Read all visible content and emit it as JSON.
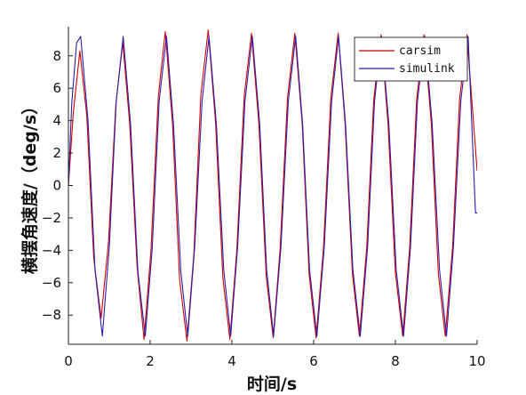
{
  "chart_data": {
    "type": "line",
    "title": "",
    "xlabel": "时间/s",
    "ylabel": "横摆角速度/（deg/s）",
    "xlim": [
      0,
      10
    ],
    "ylim": [
      -9.8,
      9.8
    ],
    "xticks": [
      0,
      2,
      4,
      6,
      8,
      10
    ],
    "yticks": [
      -8,
      -6,
      -4,
      -2,
      0,
      2,
      4,
      6,
      8
    ],
    "grid": false,
    "legend": "top-right",
    "series": [
      {
        "name": "carsim",
        "color": "#d40000",
        "x": [
          0,
          0.12,
          0.28,
          0.45,
          0.62,
          0.8,
          0.98,
          1.16,
          1.33,
          1.5,
          1.68,
          1.85,
          2.02,
          2.2,
          2.37,
          2.55,
          2.72,
          2.9,
          3.07,
          3.24,
          3.42,
          3.6,
          3.78,
          3.95,
          4.12,
          4.3,
          4.48,
          4.66,
          4.84,
          5.01,
          5.18,
          5.36,
          5.54,
          5.72,
          5.89,
          6.06,
          6.24,
          6.42,
          6.6,
          6.77,
          6.95,
          7.12,
          7.3,
          7.47,
          7.65,
          7.82,
          8.0,
          8.18,
          8.35,
          8.52,
          8.7,
          8.88,
          9.05,
          9.22,
          9.4,
          9.57,
          9.75,
          9.92,
          10.0
        ],
        "y": [
          0,
          4.5,
          8.3,
          4.3,
          -4.5,
          -8.2,
          -3.5,
          5.0,
          8.8,
          3.8,
          -5.0,
          -9.5,
          -4.0,
          5.5,
          9.5,
          3.7,
          -5.8,
          -9.6,
          -4.2,
          5.6,
          9.6,
          3.9,
          -5.7,
          -9.5,
          -4.0,
          5.5,
          9.4,
          3.8,
          -5.6,
          -9.4,
          -3.9,
          5.4,
          9.4,
          3.8,
          -5.5,
          -9.4,
          -3.9,
          5.4,
          9.4,
          3.8,
          -5.5,
          -9.3,
          -3.8,
          5.3,
          9.3,
          3.8,
          -5.4,
          -9.3,
          -3.8,
          5.3,
          9.3,
          3.8,
          -5.4,
          -9.3,
          -3.8,
          5.3,
          9.3,
          3.6,
          0.9
        ]
      },
      {
        "name": "simulink",
        "color": "#2a1fa8",
        "x": [
          0,
          0.08,
          0.2,
          0.3,
          0.48,
          0.65,
          0.83,
          1.0,
          1.17,
          1.34,
          1.52,
          1.7,
          1.88,
          2.05,
          2.22,
          2.4,
          2.57,
          2.75,
          2.92,
          3.09,
          3.27,
          3.44,
          3.62,
          3.8,
          3.97,
          4.14,
          4.32,
          4.5,
          4.68,
          4.85,
          5.02,
          5.2,
          5.38,
          5.56,
          5.73,
          5.9,
          6.08,
          6.26,
          6.44,
          6.61,
          6.78,
          6.96,
          7.14,
          7.32,
          7.49,
          7.66,
          7.84,
          8.02,
          8.2,
          8.37,
          8.54,
          8.72,
          8.9,
          9.08,
          9.25,
          9.42,
          9.6,
          9.78,
          9.96,
          10.0
        ],
        "y": [
          0,
          5.0,
          8.8,
          9.2,
          4.0,
          -5.2,
          -9.3,
          -3.8,
          5.2,
          9.2,
          3.8,
          -5.3,
          -9.3,
          -3.9,
          5.2,
          9.2,
          3.8,
          -5.3,
          -9.3,
          -3.8,
          5.2,
          9.2,
          3.8,
          -5.2,
          -9.3,
          -3.8,
          5.2,
          9.2,
          3.8,
          -5.2,
          -9.3,
          -3.8,
          5.2,
          9.2,
          3.8,
          -5.2,
          -9.3,
          -3.8,
          5.2,
          9.2,
          3.8,
          -5.2,
          -9.3,
          -3.8,
          5.2,
          9.2,
          3.8,
          -5.2,
          -9.3,
          -3.8,
          5.2,
          9.2,
          3.8,
          -5.2,
          -9.3,
          -3.8,
          5.2,
          9.2,
          -1.7,
          -1.7
        ]
      }
    ]
  }
}
